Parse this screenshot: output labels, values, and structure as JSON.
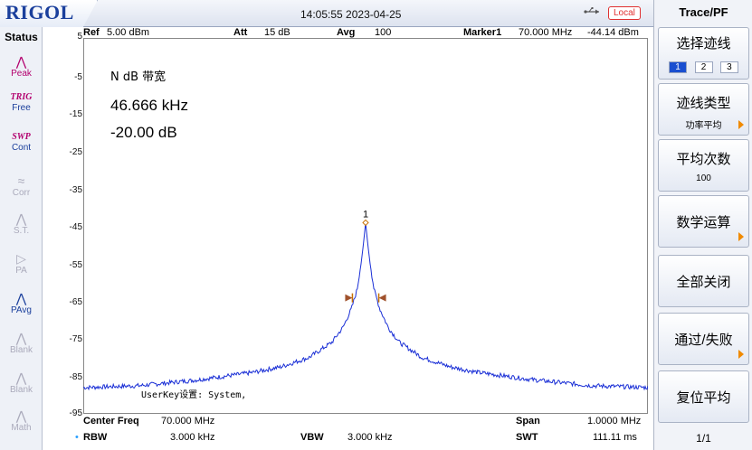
{
  "header": {
    "logo": "RIGOL",
    "datetime": "14:05:55 2023-04-25",
    "remote_badge": "Local"
  },
  "status_panel": {
    "title": "Status",
    "items": [
      {
        "icon": "peak-icon",
        "label": "Peak",
        "top": ""
      },
      {
        "icon": "",
        "label": "Free",
        "top": "TRIG"
      },
      {
        "icon": "",
        "label": "Cont",
        "top": "SWP"
      },
      {
        "icon": "corr-icon",
        "label": "Corr",
        "top": ""
      },
      {
        "icon": "st-icon",
        "label": "S.T.",
        "top": ""
      },
      {
        "icon": "pa-icon",
        "label": "PA",
        "top": ""
      },
      {
        "icon": "pavg-icon",
        "label": "PAvg",
        "top": ""
      },
      {
        "icon": "blank-icon",
        "label": "Blank",
        "top": ""
      },
      {
        "icon": "blank-icon",
        "label": "Blank",
        "top": ""
      },
      {
        "icon": "math-icon",
        "label": "Math",
        "top": ""
      }
    ]
  },
  "info_bar": {
    "ref_label": "Ref",
    "ref_value": "5.00 dBm",
    "att_label": "Att",
    "att_value": "15 dB",
    "avg_label": "Avg",
    "avg_value": "100",
    "marker_label": "Marker1",
    "marker_freq": "70.000 MHz",
    "marker_level": "-44.14 dBm",
    "y_scale_top": "5"
  },
  "measurement": {
    "title": "N dB 带宽",
    "bandwidth": "46.666 kHz",
    "ndb": "-20.00 dB",
    "userkey": "UserKey设置:   System,"
  },
  "marker_tag": "1",
  "y_ticks": [
    "-5",
    "-15",
    "-25",
    "-35",
    "-45",
    "-55",
    "-65",
    "-75",
    "-85",
    "-95"
  ],
  "bottom_bar": {
    "center_label": "Center Freq",
    "center_value": "70.000 MHz",
    "span_label": "Span",
    "span_value": "1.0000 MHz",
    "rbw_label": "RBW",
    "rbw_value": "3.000 kHz",
    "vbw_label": "VBW",
    "vbw_value": "3.000 kHz",
    "swt_label": "SWT",
    "swt_value": "111.11 ms"
  },
  "right_panel": {
    "title": "Trace/PF",
    "keys": {
      "select_trace": "选择迹线",
      "trace_type": "迹线类型",
      "trace_type_value": "功率平均",
      "avg_count": "平均次数",
      "avg_count_value": "100",
      "math": "数学运算",
      "all_off": "全部关闭",
      "pass_fail": "通过/失败",
      "reset_avg": "复位平均"
    },
    "trace_buttons": [
      "1",
      "2",
      "3"
    ],
    "selected_trace": "1",
    "page_indicator": "1/1"
  },
  "chart_data": {
    "type": "line",
    "xlabel": "",
    "ylabel": "",
    "ylim": [
      -95,
      5
    ],
    "y_unit": "dBm",
    "center_freq_mhz": 70.0,
    "span_mhz": 1.0,
    "series": [
      {
        "color": "#1a2fd6",
        "x_offset_khz": [
          -500,
          -400,
          -300,
          -200,
          -150,
          -100,
          -60,
          -40,
          -25,
          -15,
          -8,
          -4,
          0,
          4,
          8,
          15,
          25,
          40,
          60,
          100,
          150,
          200,
          300,
          400,
          500
        ],
        "y": [
          -88,
          -87.5,
          -86,
          -84,
          -82.5,
          -80,
          -76,
          -72,
          -67,
          -62,
          -55,
          -50,
          -44.14,
          -50,
          -55,
          -62,
          -67,
          -72,
          -76,
          -80,
          -82.5,
          -84,
          -86,
          -87.5,
          -88
        ]
      }
    ],
    "marker": {
      "x_offset_khz": 0,
      "y": -44.14,
      "label": "1"
    },
    "ndb_points": {
      "left_offset_khz": -23.333,
      "right_offset_khz": 23.333,
      "y": -64.14
    }
  }
}
